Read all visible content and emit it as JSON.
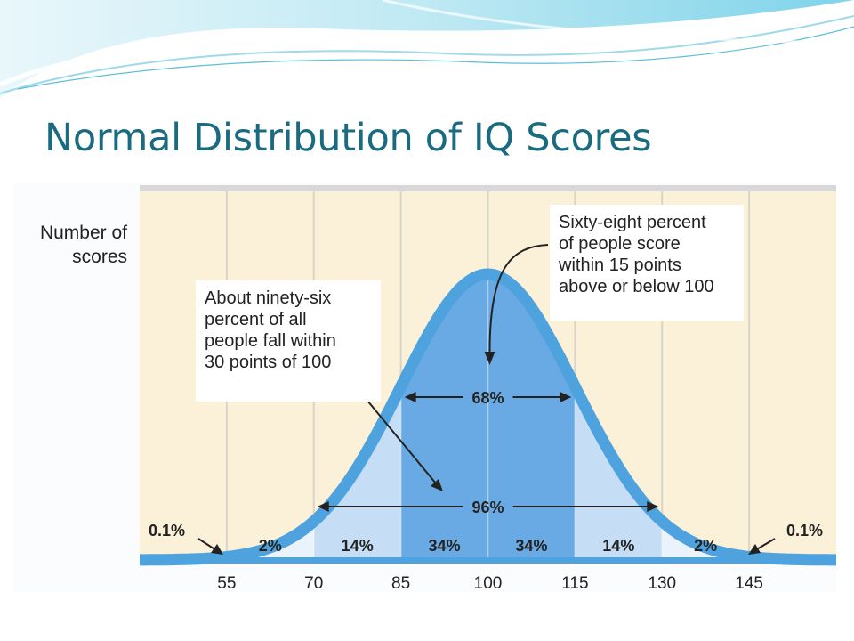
{
  "slide": {
    "title": "Normal Distribution of IQ Scores"
  },
  "colors": {
    "title": "#1a6b80",
    "background_panel": "#fbf0d8",
    "curve": "#4ea2de",
    "band_96": "#c6def5",
    "band_68": "#6aaae4",
    "axis": "#4ea2de"
  },
  "chart_data": {
    "type": "area",
    "title": "",
    "ylabel_lines": [
      "Number of",
      "scores"
    ],
    "xlabel": "",
    "mean": 100,
    "sd": 15,
    "x_ticks": [
      55,
      70,
      85,
      100,
      115,
      130,
      145
    ],
    "xlim": [
      40,
      160
    ],
    "segments": [
      {
        "from": 85,
        "to": 100,
        "label": "34%"
      },
      {
        "from": 100,
        "to": 115,
        "label": "34%"
      },
      {
        "from": 70,
        "to": 85,
        "label": "14%"
      },
      {
        "from": 115,
        "to": 130,
        "label": "14%"
      },
      {
        "from": 55,
        "to": 70,
        "label": "2%"
      },
      {
        "from": 130,
        "to": 145,
        "label": "2%"
      }
    ],
    "tails": [
      {
        "side": "left",
        "label": "0.1%"
      },
      {
        "side": "right",
        "label": "0.1%"
      }
    ],
    "ranges": [
      {
        "from": 85,
        "to": 115,
        "label": "68%"
      },
      {
        "from": 70,
        "to": 130,
        "label": "96%"
      }
    ],
    "annotations": [
      {
        "id": "sixty-eight",
        "lines": [
          "Sixty-eight percent",
          "of people score",
          "within 15 points",
          "above or below 100"
        ]
      },
      {
        "id": "ninety-six",
        "lines": [
          "About ninety-six",
          "percent of all",
          "people fall within",
          "30 points of 100"
        ]
      }
    ]
  }
}
